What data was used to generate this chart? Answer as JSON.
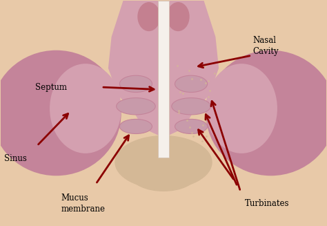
{
  "background_color": "#E8C9A8",
  "colors": {
    "outer_sinus": "#C4849A",
    "inner_cavity": "#D4A0B0",
    "septum_white": "#F5F0EB",
    "septum_border": "#D4C0B0",
    "turbinate_inner": "#C89AAA",
    "bone_tan": "#D4B896",
    "arrow_color": "#8B0000",
    "text_color": "#000000",
    "nasal_tip_pink": "#C48090",
    "background_color": "#E8C9A8"
  },
  "labels": {
    "septum": "Septum",
    "nasal_cavity": "Nasal\nCavity",
    "sinus": "Sinus",
    "mucus_membrane": "Mucus\nmembrane",
    "turbinates": "Turbinates"
  }
}
